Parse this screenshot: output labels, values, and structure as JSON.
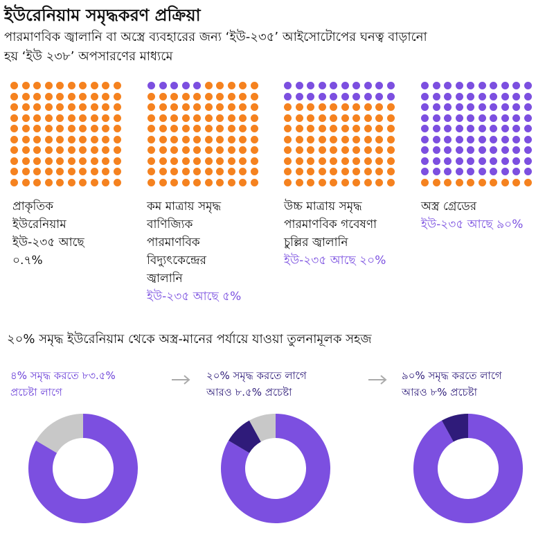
{
  "header": {
    "title": "ইউরেনিয়াম সমৃদ্ধকরণ প্রক্রিয়া",
    "subtitle_line1": "পারমাণবিক জ্বালানি বা অস্ত্রে ব্যবহারের জন্য ‘ইউ-২৩৫’ আইসোটোপের ঘনত্ব বাড়ানো",
    "subtitle_line2": "হয় ‘ইউ ২৩৮’ অপসারণের মাধ্যমে"
  },
  "colors": {
    "orange": "#f5821f",
    "purple": "#7c4fe0",
    "dark_purple": "#2f1b7a",
    "grey": "#c8c8c8"
  },
  "chart_data": [
    {
      "type": "waffle",
      "grid": "10x10",
      "panels": [
        {
          "label_lines": [
            "প্রাকৃতিক",
            "ইউরেনিয়াম",
            "ইউ-২৩৫ আছে",
            "০.৭%"
          ],
          "pct_text": "",
          "purple_dots": 0
        },
        {
          "label_lines": [
            "কম মাত্রায় সমৃদ্ধ",
            "বাণিজ্যিক",
            "পারমাণবিক",
            "বিদ্যুৎকেন্দ্রের",
            "জ্বালানি"
          ],
          "pct_text": "ইউ-২৩৫ আছে ৫%",
          "purple_dots": 5
        },
        {
          "label_lines": [
            "উচ্চ মাত্রায় সমৃদ্ধ",
            "পারমাণবিক গবেষণা",
            "চুল্লির জ্বালানি"
          ],
          "pct_text": "ইউ-২৩৫ আছে ২০%",
          "purple_dots": 20
        },
        {
          "label_lines": [
            "অস্ত্র গ্রেডের"
          ],
          "pct_text": "ইউ-২৩৫ আছে ৯০%",
          "purple_dots": 90
        }
      ]
    },
    {
      "type": "donut",
      "title": "২০% সমৃদ্ধ ইউরেনিয়াম থেকে অস্ত্র-মানের পর্যায়ে যাওয়া তুলনামূলক সহজ",
      "items": [
        {
          "text_lines": [
            "৪% সমৃদ্ধ করতে ৮৩.৫%",
            "প্রচেষ্টা লাগে"
          ],
          "segments": [
            {
              "name": "effort",
              "value": 83.5,
              "color": "purple"
            },
            {
              "name": "remaining",
              "value": 16.5,
              "color": "grey"
            }
          ]
        },
        {
          "text_lines": [
            "২০% সমৃদ্ধ করতে লাগে",
            "আরও ৮.৫% প্রচেষ্টা"
          ],
          "segments": [
            {
              "name": "prior effort",
              "value": 83.5,
              "color": "purple"
            },
            {
              "name": "added effort",
              "value": 8.5,
              "color": "dark_purple"
            },
            {
              "name": "remaining",
              "value": 8,
              "color": "grey"
            }
          ]
        },
        {
          "text_lines": [
            "৯০% সমৃদ্ধ করতে লাগে",
            "আরও ৮% প্রচেষ্টা"
          ],
          "segments": [
            {
              "name": "prior effort",
              "value": 92,
              "color": "purple"
            },
            {
              "name": "added effort",
              "value": 8,
              "color": "dark_purple"
            }
          ]
        }
      ]
    }
  ]
}
